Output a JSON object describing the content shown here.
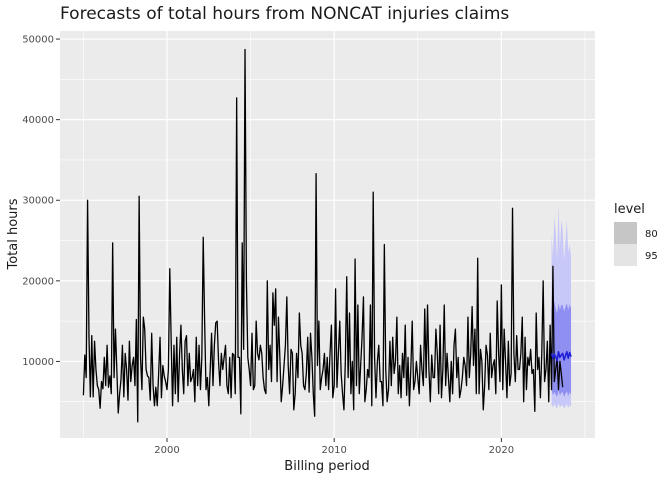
{
  "chart_data": {
    "type": "line",
    "title": "Forecasts of total hours from NONCAT injuries claims",
    "xlabel": "Billing period",
    "ylabel": "Total hours",
    "xlim": [
      1993.6,
      2025.6
    ],
    "ylim": [
      500,
      51000
    ],
    "x_ticks": [
      2000,
      2010,
      2020
    ],
    "x_tick_labels": [
      "2000",
      "2010",
      "2020"
    ],
    "y_ticks": [
      10000,
      20000,
      30000,
      40000,
      50000
    ],
    "y_tick_labels": [
      "10000",
      "20000",
      "30000",
      "40000",
      "50000"
    ],
    "grid": true,
    "legend": {
      "title": "level",
      "placement": "right",
      "entries": [
        {
          "label": "80",
          "color": "#c6c6c6"
        },
        {
          "label": "95",
          "color": "#e4e4e4"
        }
      ]
    },
    "colors": {
      "panel": "#ebebeb",
      "grid": "#ffffff",
      "history": "#000000",
      "forecast": "#1f1fd6",
      "pi80": "#8f8ff2",
      "pi95": "#c8c8f8"
    },
    "history": {
      "x_start": 1995.0,
      "step": 0.0833333,
      "values": [
        5800,
        10800,
        8000,
        30000,
        13000,
        5600,
        13200,
        5600,
        12500,
        9000,
        7000,
        6500,
        4200,
        7500,
        6600,
        10500,
        7000,
        12000,
        6800,
        8200,
        6000,
        24700,
        8000,
        14000,
        9000,
        3600,
        6000,
        7800,
        12000,
        5600,
        11000,
        9000,
        5200,
        12500,
        7500,
        9500,
        10500,
        7000,
        15200,
        2500,
        30500,
        10500,
        6500,
        15500,
        14000,
        9000,
        8200,
        8000,
        5200,
        13500,
        7000,
        4500,
        6800,
        4500,
        8500,
        13000,
        5500,
        9500,
        8200,
        7500,
        6500,
        9000,
        21500,
        12500,
        4500,
        12000,
        6000,
        13000,
        5000,
        10800,
        14500,
        9000,
        6000,
        12500,
        13200,
        7000,
        11000,
        7500,
        8000,
        9000,
        5000,
        13000,
        7000,
        12000,
        6500,
        10500,
        25400,
        15000,
        6500,
        8000,
        4500,
        9000,
        13500,
        7000,
        12000,
        14800,
        15000,
        10000,
        7000,
        11000,
        9000,
        10500,
        12000,
        7000,
        6000,
        10500,
        5500,
        11000,
        10800,
        6000,
        42700,
        10500,
        10500,
        3500,
        24700,
        11500,
        48700,
        20000,
        10500,
        9000,
        7000,
        13500,
        6500,
        7000,
        15000,
        11000,
        10200,
        12000,
        11000,
        8000,
        6500,
        6000,
        20000,
        9000,
        12000,
        7500,
        18500,
        14500,
        19000,
        7500,
        15500,
        10500,
        5000,
        7000,
        9500,
        12000,
        18000,
        9500,
        6000,
        11500,
        11000,
        4000,
        6000,
        11000,
        8000,
        16000,
        12000,
        11000,
        7000,
        6500,
        8500,
        13000,
        6200,
        13500,
        10500,
        6000,
        3200,
        33300,
        9500,
        15000,
        6500,
        8000,
        9000,
        11000,
        7000,
        10500,
        6500,
        11000,
        14500,
        5500,
        7000,
        19000,
        6800,
        11000,
        15000,
        8500,
        6000,
        4000,
        10000,
        20500,
        8000,
        16000,
        6000,
        10000,
        4000,
        22700,
        7000,
        17000,
        6000,
        9500,
        13000,
        18000,
        5000,
        6500,
        9000,
        8000,
        17000,
        4500,
        31000,
        10500,
        5500,
        10000,
        12000,
        7500,
        7500,
        4500,
        24500,
        9000,
        5000,
        6500,
        12500,
        7000,
        13000,
        8500,
        10000,
        15500,
        6000,
        9500,
        5500,
        11000,
        8000,
        14500,
        5800,
        10500,
        4500,
        9000,
        15000,
        6500,
        7500,
        10000,
        8000,
        6000,
        12000,
        9000,
        7000,
        16500,
        8000,
        17000,
        9000,
        5000,
        10800,
        8000,
        8000,
        14000,
        11000,
        6000,
        14500,
        5500,
        9000,
        17000,
        7000,
        11000,
        8000,
        5000,
        10000,
        6000,
        12000,
        14000,
        8000,
        10500,
        5500,
        6500,
        8000,
        10500,
        9500,
        7000,
        15500,
        8000,
        11000,
        16800,
        9500,
        14000,
        6000,
        22800,
        6000,
        11500,
        10000,
        4000,
        7000,
        12000,
        10800,
        6500,
        13500,
        8000,
        9500,
        10200,
        6000,
        17500,
        11000,
        7500,
        19500,
        6500,
        14000,
        10000,
        5500,
        12500,
        7000,
        8500,
        29000,
        11000,
        7500,
        13200,
        9000,
        9000,
        11000,
        15500,
        5000,
        13000,
        6500,
        10500,
        9500,
        11500,
        8500,
        9000,
        3800,
        16000,
        9000,
        10500,
        5500,
        11000,
        20000,
        7500,
        9000,
        12500,
        5000,
        14500,
        6500,
        21800,
        7500,
        9000,
        10500,
        6500,
        10000,
        8500,
        6800
      ]
    },
    "forecast": {
      "x_start": 2023.0,
      "step": 0.0833333,
      "mean": [
        11000,
        10400,
        10900,
        10600,
        10100,
        11200,
        10500,
        10800,
        11000,
        10200,
        10700,
        11200,
        10400,
        11100,
        10600
      ],
      "lo80": [
        6500,
        5800,
        6200,
        5900,
        5600,
        6400,
        5800,
        6100,
        6200,
        5600,
        6000,
        6300,
        5700,
        6200,
        5900
      ],
      "hi80": [
        16800,
        16000,
        17500,
        16500,
        16000,
        17200,
        16400,
        17000,
        17000,
        16200,
        16800,
        17200,
        16400,
        17100,
        16600
      ],
      "lo95": [
        4600,
        4300,
        4700,
        4400,
        4100,
        4800,
        4300,
        4500,
        4600,
        4100,
        4400,
        4700,
        4200,
        4600,
        4400
      ],
      "hi95": [
        25800,
        23000,
        28000,
        26000,
        22500,
        29500,
        24000,
        27500,
        26500,
        22500,
        25000,
        27500,
        23500,
        24500,
        23000
      ]
    }
  }
}
